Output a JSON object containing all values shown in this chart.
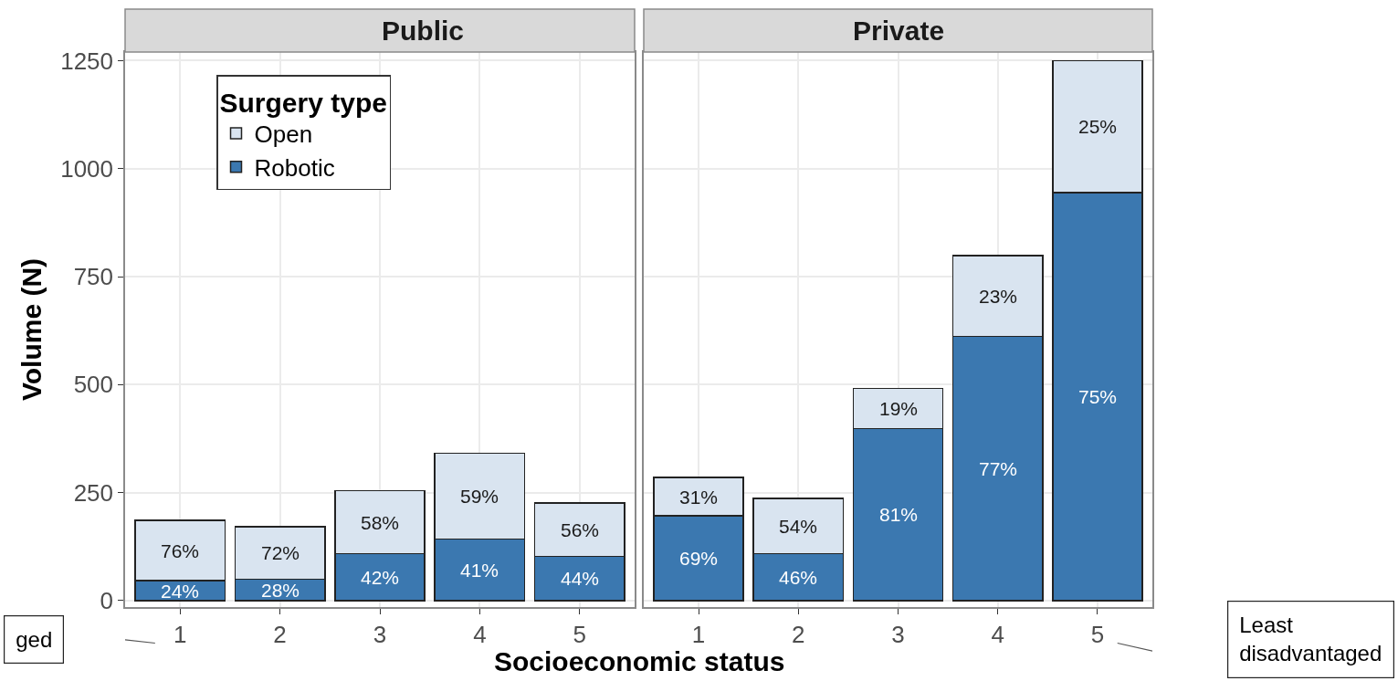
{
  "chart_data": [
    {
      "type": "bar",
      "title": "Public",
      "xlabel": "Socioeconomic status",
      "ylabel": "Volume (N)",
      "legend_title": "Surgery type",
      "categories": [
        "1",
        "2",
        "3",
        "4",
        "5"
      ],
      "stacked": true,
      "ylim": [
        -15,
        1270
      ],
      "yticks": [
        0,
        250,
        500,
        750,
        1000,
        1250
      ],
      "grid": true,
      "legend": "top left",
      "series": [
        {
          "name": "Robotic",
          "color": "#3b78b0",
          "values": [
            46,
            50,
            109,
            142,
            102
          ]
        },
        {
          "name": "Open",
          "color": "#d9e4f0",
          "values": [
            140,
            121,
            145,
            199,
            124
          ]
        }
      ],
      "annotations": [
        "ged",
        "24%",
        "28%",
        "42%",
        "41%",
        "44%",
        "76%",
        "72%",
        "58%",
        "59%",
        "56%"
      ]
    },
    {
      "type": "bar",
      "title": "Private",
      "categories": [
        "1",
        "2",
        "3",
        "4",
        "5"
      ],
      "stacked": true,
      "ylim": [
        -15,
        1270
      ],
      "yticks": [
        0,
        250,
        500,
        750,
        1000,
        1250
      ],
      "grid": true,
      "tick_labels": "x",
      "series": [
        {
          "color": "#3b78b0",
          "values": [
            196,
            109,
            398,
            612,
            945
          ]
        },
        {
          "color": "#d9e4f0",
          "values": [
            89,
            127,
            93,
            187,
            305
          ]
        }
      ],
      "annotations": [
        "Least\ndisadvantaged",
        "69%",
        "46%",
        "81%",
        "77%",
        "75%",
        "31%",
        "54%",
        "19%",
        "23%",
        "25%"
      ]
    }
  ]
}
